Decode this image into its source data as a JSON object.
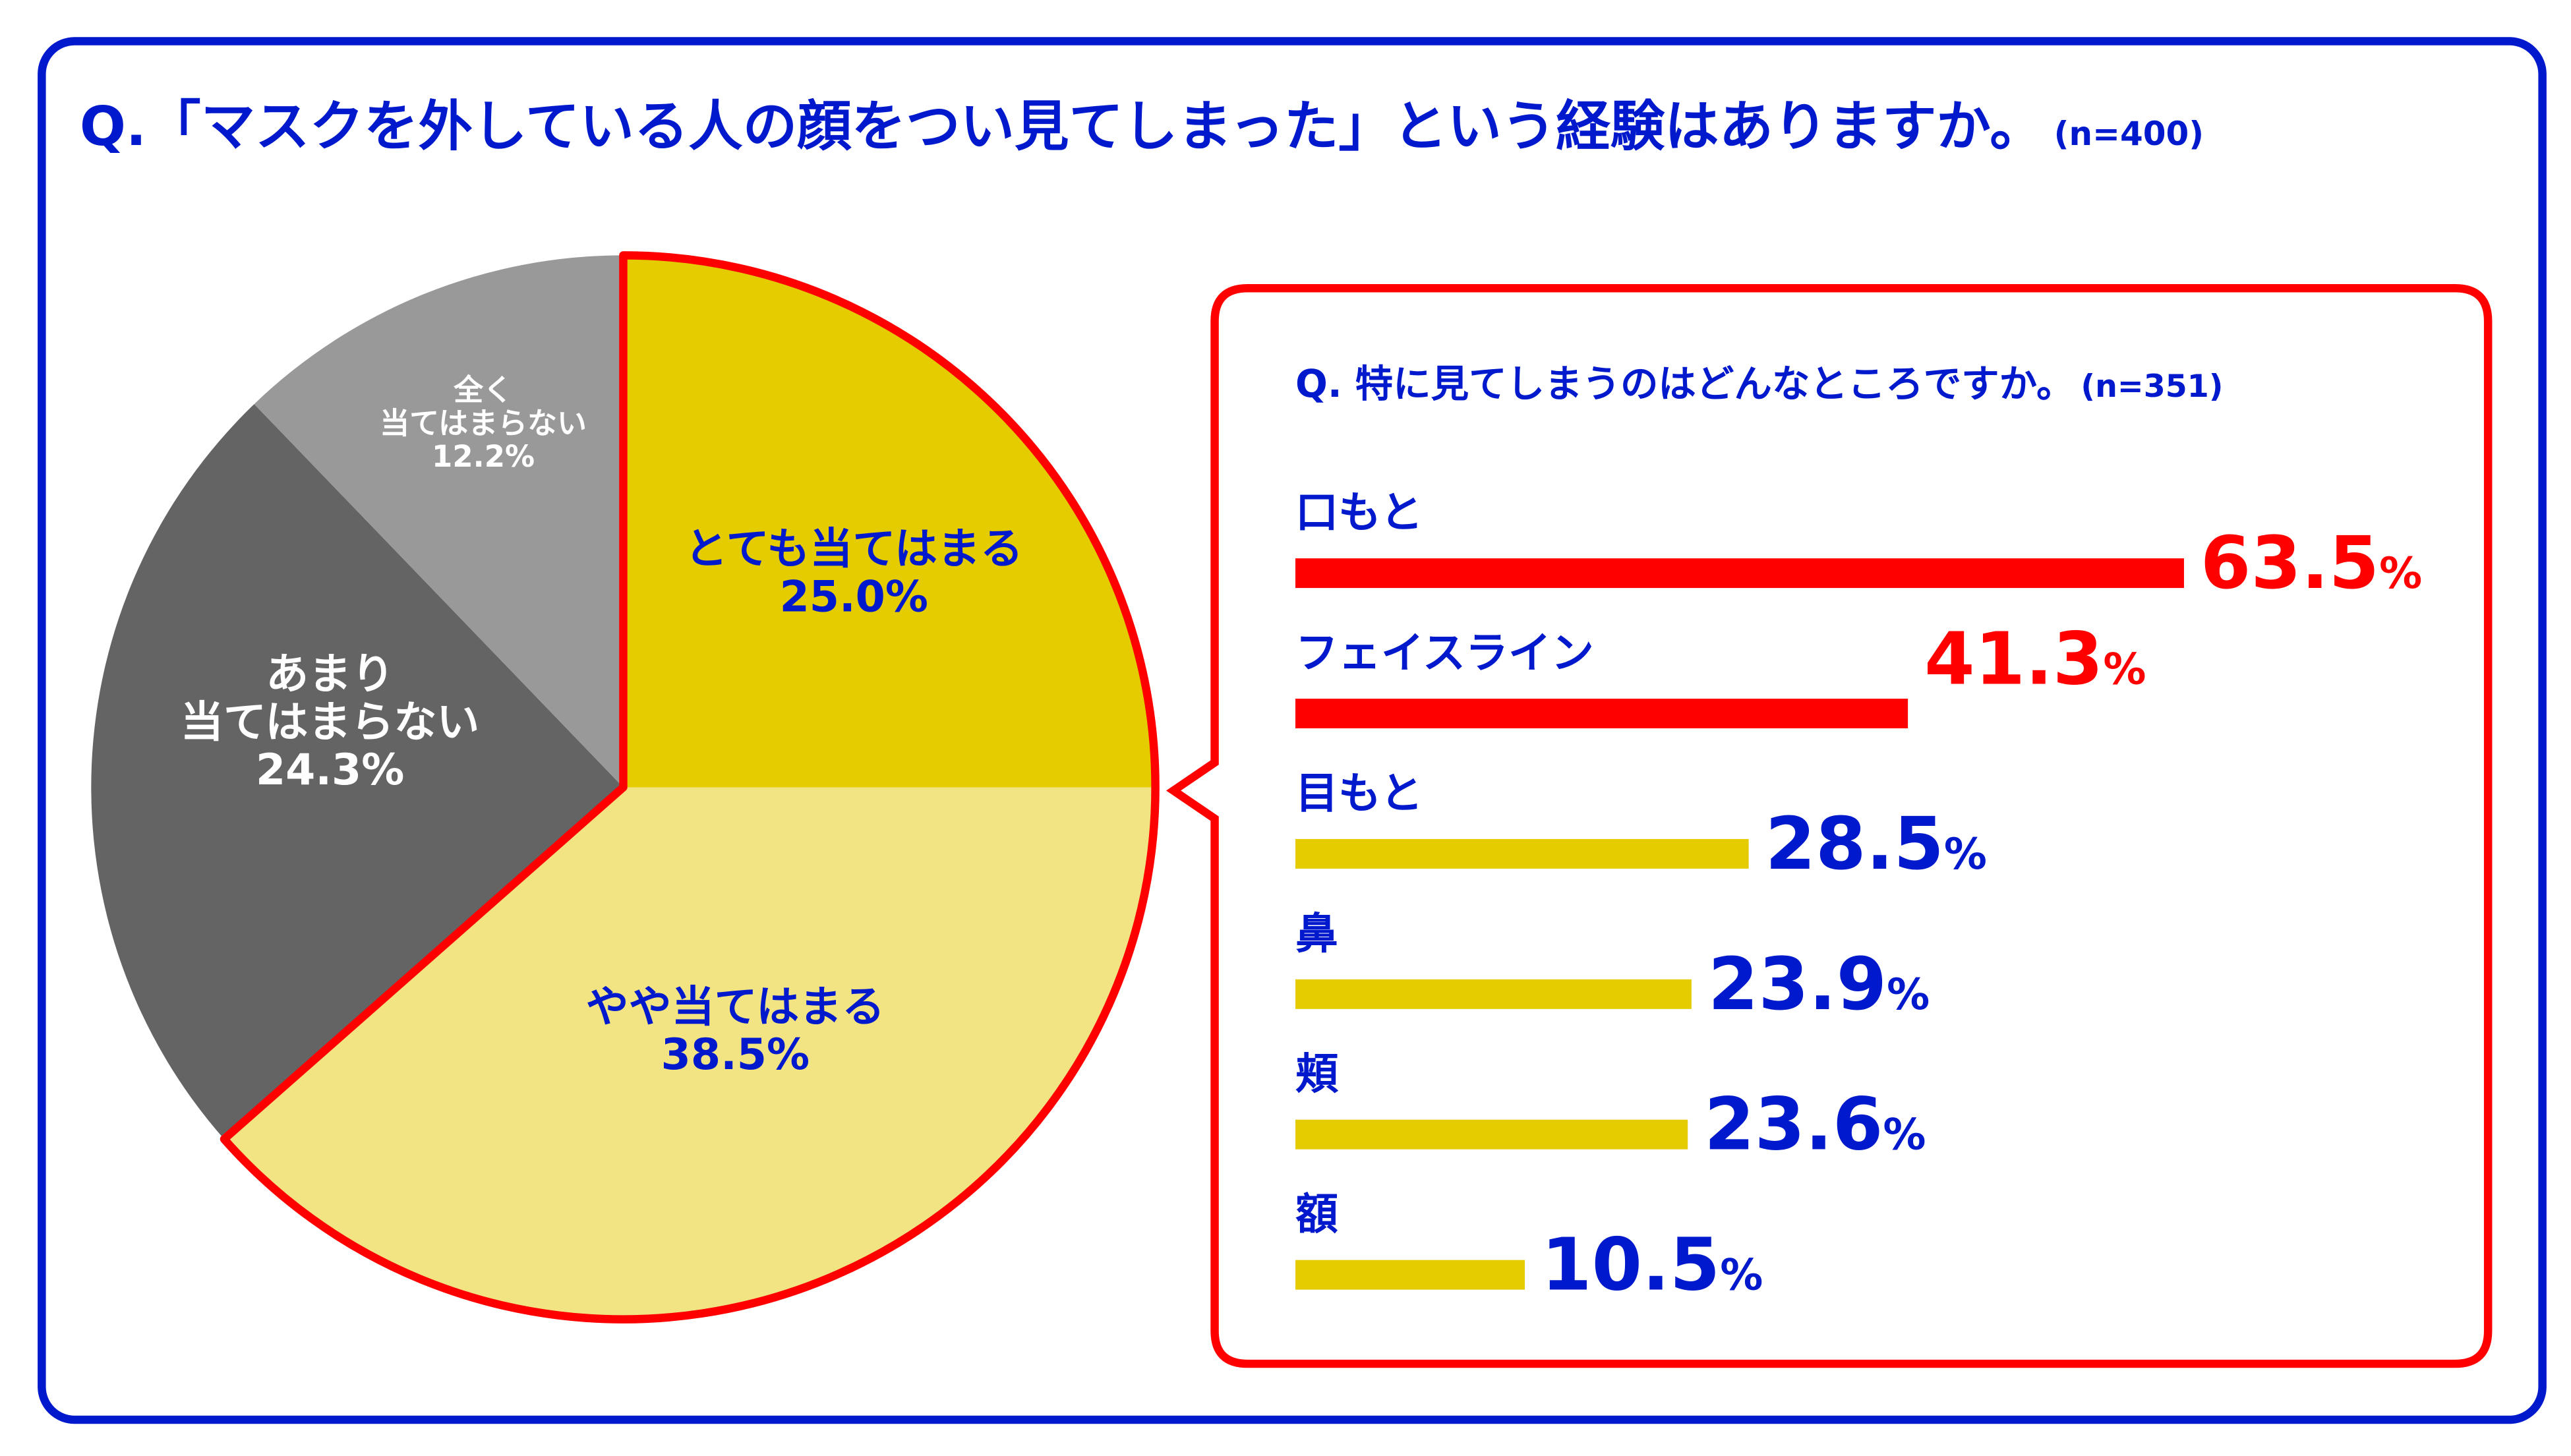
{
  "title": {
    "text": "Q.「マスクを外している人の顔をつい見てしまった」という経験はありますか。",
    "n": "(n=400)"
  },
  "colors": {
    "frame": "#0019cc",
    "accent": "#ff0000",
    "text_blue": "#0019cc",
    "yellow_dark": "#e5cc00",
    "yellow_light": "#f2e483",
    "grey_dark": "#646464",
    "grey_light": "#999999"
  },
  "chart_data": [
    {
      "type": "pie",
      "title": "Q.「マスクを外している人の顔をつい見てしまった」という経験はありますか。(n=400)",
      "slices": [
        {
          "label": "とても当てはまる",
          "lines": [
            "とても当てはまる"
          ],
          "value": 25.0,
          "display": "25.0%",
          "color": "#e5cc00",
          "text_color": "#0019cc"
        },
        {
          "label": "やや当てはまる",
          "lines": [
            "やや当てはまる"
          ],
          "value": 38.5,
          "display": "38.5%",
          "color": "#f2e483",
          "text_color": "#0019cc"
        },
        {
          "label": "あまり当てはまらない",
          "lines": [
            "あまり",
            "当てはまらない"
          ],
          "value": 24.3,
          "display": "24.3%",
          "color": "#646464",
          "text_color": "#ffffff"
        },
        {
          "label": "全く当てはまらない",
          "lines": [
            "全く",
            "当てはまらない"
          ],
          "value": 12.2,
          "display": "12.2%",
          "color": "#999999",
          "text_color": "#ffffff"
        }
      ],
      "start": "top",
      "direction": "clockwise",
      "highlighted_slices": [
        "とても当てはまる",
        "やや当てはまる"
      ]
    },
    {
      "type": "bar",
      "orientation": "horizontal",
      "title": "Q. 特に見てしまうのはどんなところですか。(n=351)",
      "title_text": "Q. 特に見てしまうのはどんなところですか。",
      "n": "(n=351)",
      "categories": [
        "口もと",
        "フェイスライン",
        "目もと",
        "鼻",
        "頬",
        "額"
      ],
      "values": [
        63.5,
        41.3,
        28.5,
        23.9,
        23.6,
        10.5
      ],
      "value_labels": [
        "63.5",
        "41.3",
        "28.5",
        "23.9",
        "23.6",
        "10.5"
      ],
      "unit": "%",
      "bar_colors": [
        "#ff0000",
        "#ff0000",
        "#e5cc00",
        "#e5cc00",
        "#e5cc00",
        "#e5cc00"
      ],
      "label_colors": [
        "#ff0000",
        "#ff0000",
        "#0019cc",
        "#0019cc",
        "#0019cc",
        "#0019cc"
      ]
    }
  ]
}
